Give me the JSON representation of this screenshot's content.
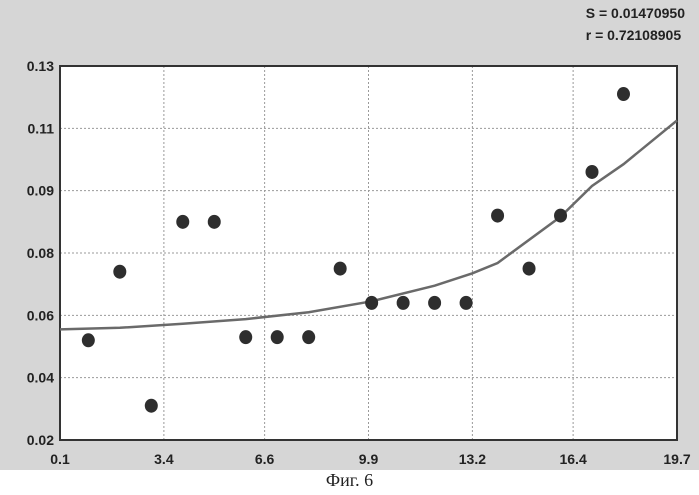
{
  "stats": {
    "s_line": "S = 0.01470950",
    "r_line": "r = 0.72108905"
  },
  "caption": "Фиг. 6",
  "chart_data": {
    "type": "scatter",
    "title": "",
    "xlabel": "",
    "ylabel": "",
    "xlim": [
      0.1,
      19.7
    ],
    "ylim": [
      0.02,
      0.13
    ],
    "x_ticks": [
      0.1,
      3.4,
      6.6,
      9.9,
      13.2,
      16.4,
      19.7
    ],
    "x_tick_labels": [
      "0.1",
      "3.4",
      "6.6",
      "9.9",
      "13.2",
      "16.4",
      "19.7"
    ],
    "y_ticks": [
      0.02,
      0.04,
      0.06,
      0.08,
      0.09,
      0.11,
      0.13
    ],
    "y_tick_labels": [
      "0.02",
      "0.04",
      "0.06",
      "0.08",
      "0.09",
      "0.11",
      "0.13"
    ],
    "grid": true,
    "series": [
      {
        "name": "points",
        "type": "scatter",
        "x": [
          1.0,
          2.0,
          3.0,
          4.0,
          5.0,
          6.0,
          7.0,
          8.0,
          9.0,
          10.0,
          11.0,
          12.0,
          13.0,
          14.0,
          15.0,
          16.0,
          17.0,
          18.0
        ],
        "y": [
          0.052,
          0.074,
          0.031,
          0.085,
          0.085,
          0.053,
          0.053,
          0.053,
          0.075,
          0.064,
          0.064,
          0.064,
          0.064,
          0.086,
          0.075,
          0.086,
          0.096,
          0.121
        ]
      },
      {
        "name": "fit",
        "type": "line",
        "x": [
          0.1,
          2.0,
          4.0,
          6.0,
          8.0,
          10.0,
          12.0,
          13.2,
          14.0,
          16.0,
          17.0,
          18.0,
          19.7
        ],
        "y": [
          0.0555,
          0.056,
          0.0573,
          0.0588,
          0.061,
          0.0645,
          0.0695,
          0.0735,
          0.0768,
          0.0858,
          0.0915,
          0.0985,
          0.1125
        ]
      }
    ]
  },
  "colors": {
    "figure_bg": "#d6d6d6",
    "plot_bg": "#ffffff",
    "grid": "#9a9a9a",
    "marker": "#2e2e2e",
    "fit_line": "#6a6a6a"
  }
}
